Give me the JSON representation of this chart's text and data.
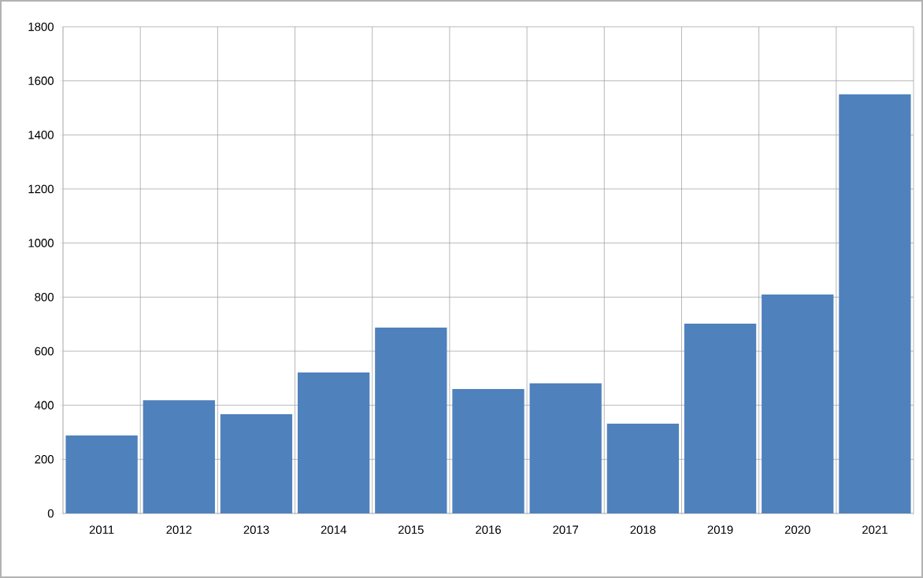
{
  "chart_data": {
    "type": "bar",
    "categories": [
      "2011",
      "2012",
      "2013",
      "2014",
      "2015",
      "2016",
      "2017",
      "2018",
      "2019",
      "2020",
      "2021"
    ],
    "values": [
      288,
      419,
      367,
      521,
      687,
      460,
      481,
      332,
      702,
      810,
      1550
    ],
    "color": "#4f81bd",
    "ylim": [
      0,
      1800
    ],
    "yticks": [
      0,
      200,
      400,
      600,
      800,
      1000,
      1200,
      1400,
      1600,
      1800
    ],
    "grid": true
  }
}
